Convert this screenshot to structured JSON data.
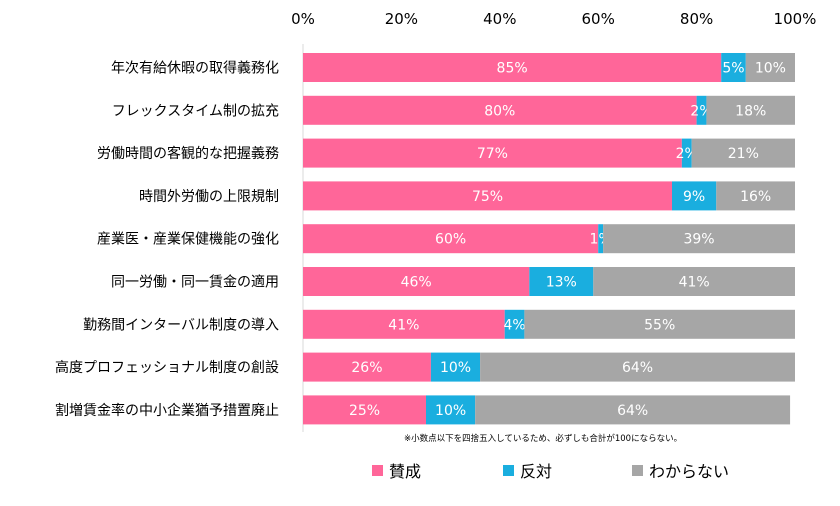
{
  "chart_data": {
    "type": "bar",
    "orientation": "horizontal",
    "stacked": true,
    "xlim": [
      0,
      100
    ],
    "x_ticks": [
      "0%",
      "20%",
      "40%",
      "60%",
      "80%",
      "100%"
    ],
    "categories": [
      "年次有給休暇の取得義務化",
      "フレックスタイム制の拡充",
      "労働時間の客観的な把握義務",
      "時間外労働の上限規制",
      "産業医・産業保健機能の強化",
      "同一労働・同一賃金の適用",
      "勤務間インターバル制度の導入",
      "高度プロフェッショナル制度の創設",
      "割増賃金率の中小企業猶予措置廃止"
    ],
    "series": [
      {
        "name": "賛成",
        "color": "#ff6699",
        "values": [
          85,
          80,
          77,
          75,
          60,
          46,
          41,
          26,
          25
        ]
      },
      {
        "name": "反対",
        "color": "#1aaedf",
        "values": [
          5,
          2,
          2,
          9,
          1,
          13,
          4,
          10,
          10
        ]
      },
      {
        "name": "わからない",
        "color": "#a6a6a6",
        "values": [
          10,
          18,
          21,
          16,
          39,
          41,
          55,
          64,
          64
        ]
      }
    ],
    "legend_position": "bottom",
    "grid": false,
    "note": "※小数点以下を四捨五入しているため、必ずしも合計が100にならない。"
  }
}
